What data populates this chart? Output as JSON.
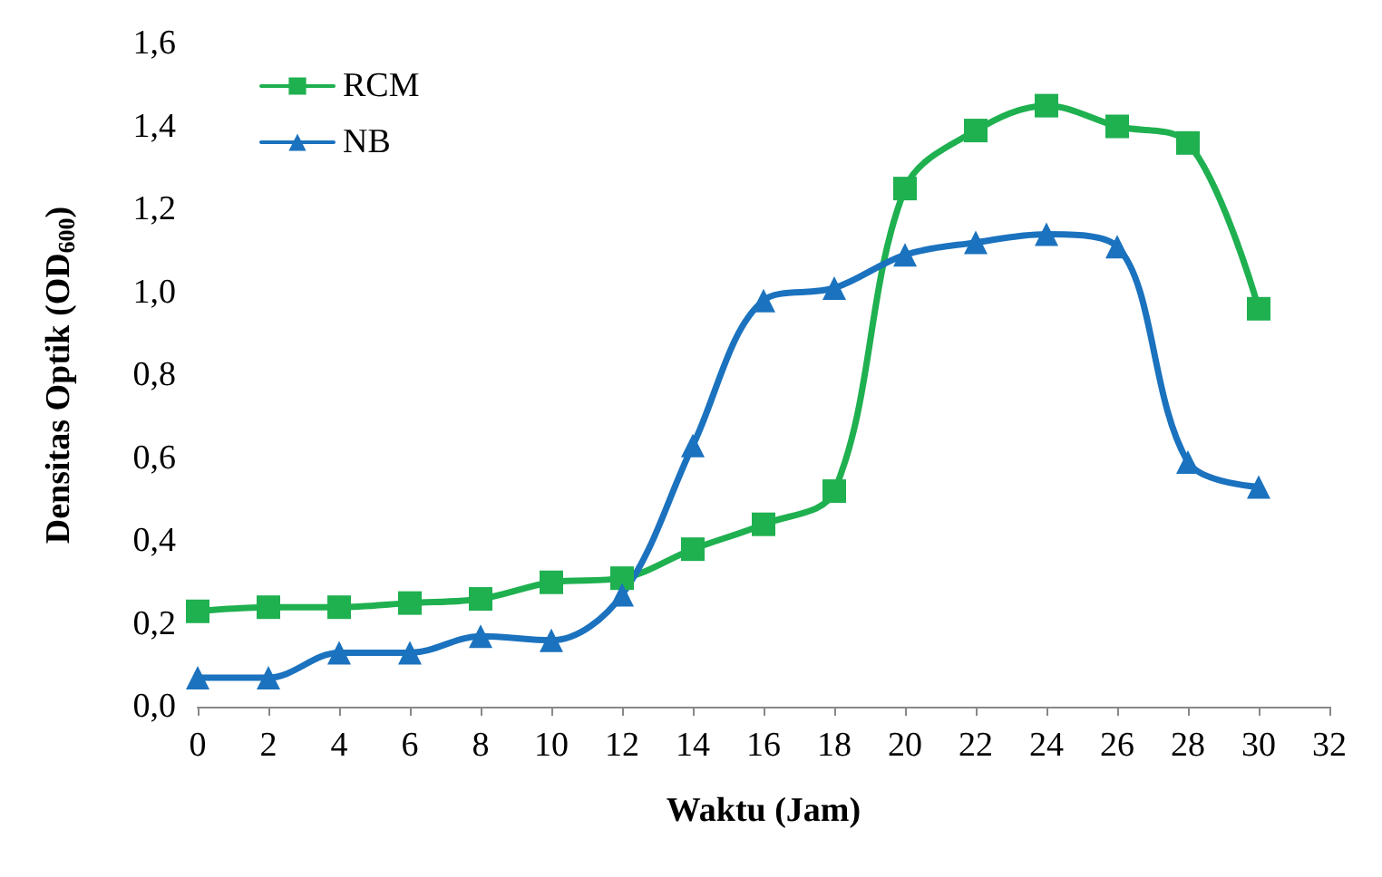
{
  "chart_data": {
    "type": "line",
    "xlabel": "Waktu (Jam)",
    "ylabel": "Densitas Optik (OD$_{600}$)",
    "x": [
      0,
      2,
      4,
      6,
      8,
      10,
      12,
      14,
      16,
      18,
      20,
      22,
      24,
      26,
      28,
      30
    ],
    "xlim": [
      0,
      32
    ],
    "xticks": [
      0,
      2,
      4,
      6,
      8,
      10,
      12,
      14,
      16,
      18,
      20,
      22,
      24,
      26,
      28,
      30,
      32
    ],
    "ylim": [
      0,
      1.6
    ],
    "yticks": [
      {
        "value": 0,
        "label": "0,0"
      },
      {
        "value": 0.2,
        "label": "0,2"
      },
      {
        "value": 0.4,
        "label": "0,4"
      },
      {
        "value": 0.6,
        "label": "0,6"
      },
      {
        "value": 0.8,
        "label": "0,8"
      },
      {
        "value": 1,
        "label": "1,0"
      },
      {
        "value": 1.2,
        "label": "1,2"
      },
      {
        "value": 1.4,
        "label": "1,4"
      },
      {
        "value": 1.6,
        "label": "1,6"
      }
    ],
    "grid": false,
    "legend": "top left",
    "line_style": "solid",
    "series": [
      {
        "name": "RCM",
        "color": "#1fb050",
        "marker": "square",
        "values": [
          0.23,
          0.24,
          0.24,
          0.25,
          0.26,
          0.3,
          0.31,
          0.38,
          0.44,
          0.52,
          1.25,
          1.39,
          1.45,
          1.4,
          1.36,
          0.96
        ]
      },
      {
        "name": "NB",
        "color": "#1b72be",
        "marker": "triangle",
        "values": [
          0.07,
          0.07,
          0.13,
          0.13,
          0.17,
          0.16,
          0.27,
          0.63,
          0.98,
          1.01,
          1.09,
          1.12,
          1.14,
          1.11,
          0.59,
          0.53
        ]
      }
    ]
  }
}
